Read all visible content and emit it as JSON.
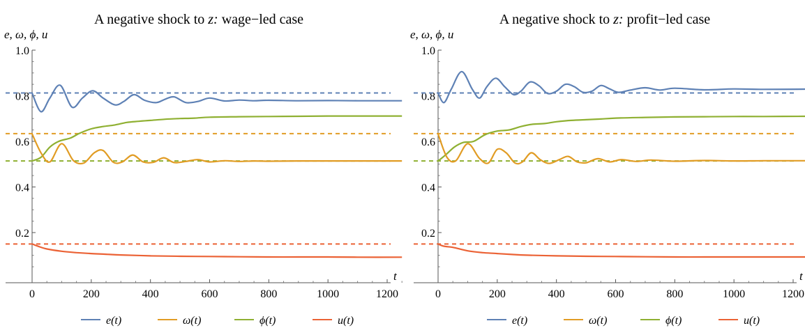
{
  "chart_data": [
    {
      "type": "line",
      "title_prefix": "A negative shock to ",
      "title_var": "z:",
      "title_suffix": " wage−led case",
      "ylabel": "e, ω, ϕ, u",
      "xlabel": "t",
      "xlim": [
        -10,
        1250
      ],
      "ylim": [
        -0.02,
        1.0
      ],
      "x_ticks": [
        0,
        200,
        400,
        600,
        800,
        1000,
        1200
      ],
      "x_tick_labels": [
        "0",
        "200",
        "400",
        "600",
        "800",
        "1000",
        "1200"
      ],
      "y_ticks": [
        0.2,
        0.4,
        0.6,
        0.8,
        1.0
      ],
      "y_tick_labels": [
        "0.2",
        "0.4",
        "0.6",
        "0.8",
        "1.0"
      ],
      "grid": false,
      "legend_position": "bottom",
      "series": [
        {
          "name": "e(t)",
          "color": "#5E81B5",
          "x": [
            0,
            30,
            60,
            95,
            135,
            170,
            205,
            240,
            280,
            310,
            345,
            380,
            420,
            450,
            480,
            520,
            560,
            600,
            650,
            700,
            750,
            800,
            900,
            1000,
            1100,
            1250
          ],
          "y": [
            0.812,
            0.73,
            0.79,
            0.846,
            0.75,
            0.79,
            0.822,
            0.79,
            0.76,
            0.775,
            0.805,
            0.78,
            0.77,
            0.785,
            0.795,
            0.77,
            0.775,
            0.79,
            0.777,
            0.781,
            0.778,
            0.78,
            0.778,
            0.779,
            0.778,
            0.778
          ]
        },
        {
          "name": "ω(t)",
          "color": "#E19C24",
          "x": [
            0,
            30,
            60,
            100,
            140,
            175,
            210,
            240,
            275,
            305,
            340,
            375,
            410,
            445,
            480,
            520,
            560,
            600,
            650,
            700,
            750,
            800,
            900,
            1000,
            1100,
            1250
          ],
          "y": [
            0.633,
            0.55,
            0.51,
            0.59,
            0.515,
            0.505,
            0.55,
            0.56,
            0.508,
            0.51,
            0.54,
            0.51,
            0.508,
            0.528,
            0.507,
            0.512,
            0.52,
            0.51,
            0.515,
            0.512,
            0.514,
            0.513,
            0.514,
            0.514,
            0.514,
            0.514
          ]
        },
        {
          "name": "ϕ(t)",
          "color": "#8FB032",
          "x": [
            0,
            30,
            60,
            90,
            130,
            160,
            200,
            240,
            280,
            320,
            360,
            400,
            450,
            500,
            550,
            600,
            700,
            800,
            900,
            1000,
            1100,
            1250
          ],
          "y": [
            0.514,
            0.53,
            0.575,
            0.6,
            0.615,
            0.635,
            0.655,
            0.665,
            0.672,
            0.683,
            0.688,
            0.692,
            0.697,
            0.7,
            0.702,
            0.706,
            0.708,
            0.709,
            0.71,
            0.711,
            0.711,
            0.711
          ]
        },
        {
          "name": "u(t)",
          "color": "#EB6235",
          "x": [
            0,
            20,
            50,
            100,
            150,
            200,
            250,
            300,
            400,
            500,
            600,
            700,
            800,
            900,
            1000,
            1100,
            1250
          ],
          "y": [
            0.15,
            0.14,
            0.128,
            0.118,
            0.112,
            0.108,
            0.105,
            0.102,
            0.098,
            0.096,
            0.095,
            0.094,
            0.093,
            0.093,
            0.093,
            0.092,
            0.092
          ]
        }
      ],
      "reference_lines": [
        {
          "y": 0.812,
          "color": "#5E81B5"
        },
        {
          "y": 0.634,
          "color": "#E19C24"
        },
        {
          "y": 0.514,
          "color": "#8FB032"
        },
        {
          "y": 0.15,
          "color": "#EB6235"
        }
      ]
    },
    {
      "type": "line",
      "title_prefix": "A negative shock to ",
      "title_var": "z:",
      "title_suffix": " profit−led case",
      "ylabel": "e, ω, ϕ, u",
      "xlabel": "t",
      "xlim": [
        -10,
        1250
      ],
      "ylim": [
        -0.02,
        1.0
      ],
      "x_ticks": [
        0,
        200,
        400,
        600,
        800,
        1000,
        1200
      ],
      "x_tick_labels": [
        "0",
        "200",
        "400",
        "600",
        "800",
        "1000",
        "1200"
      ],
      "y_ticks": [
        0.2,
        0.4,
        0.6,
        0.8,
        1.0
      ],
      "y_tick_labels": [
        "0.2",
        "0.4",
        "0.6",
        "0.8",
        "1.0"
      ],
      "grid": false,
      "legend_position": "bottom",
      "series": [
        {
          "name": "e(t)",
          "color": "#5E81B5",
          "x": [
            0,
            20,
            45,
            80,
            115,
            140,
            165,
            195,
            225,
            255,
            280,
            310,
            340,
            370,
            400,
            430,
            460,
            490,
            520,
            550,
            580,
            610,
            650,
            700,
            750,
            800,
            900,
            1000,
            1100,
            1250
          ],
          "y": [
            0.812,
            0.77,
            0.83,
            0.906,
            0.83,
            0.79,
            0.84,
            0.877,
            0.84,
            0.805,
            0.82,
            0.86,
            0.845,
            0.81,
            0.82,
            0.85,
            0.84,
            0.815,
            0.82,
            0.845,
            0.83,
            0.815,
            0.825,
            0.835,
            0.825,
            0.833,
            0.826,
            0.83,
            0.828,
            0.829
          ]
        },
        {
          "name": "ω(t)",
          "color": "#E19C24",
          "x": [
            0,
            30,
            60,
            100,
            140,
            170,
            200,
            230,
            260,
            285,
            315,
            345,
            375,
            410,
            440,
            470,
            500,
            540,
            580,
            620,
            670,
            720,
            800,
            900,
            1000,
            1100,
            1250
          ],
          "y": [
            0.633,
            0.53,
            0.515,
            0.59,
            0.525,
            0.505,
            0.565,
            0.55,
            0.505,
            0.51,
            0.55,
            0.52,
            0.503,
            0.52,
            0.534,
            0.51,
            0.506,
            0.524,
            0.51,
            0.52,
            0.512,
            0.518,
            0.513,
            0.516,
            0.514,
            0.515,
            0.515
          ]
        },
        {
          "name": "ϕ(t)",
          "color": "#8FB032",
          "x": [
            0,
            25,
            55,
            85,
            120,
            160,
            200,
            240,
            280,
            320,
            360,
            400,
            450,
            500,
            550,
            600,
            700,
            800,
            900,
            1000,
            1100,
            1250
          ],
          "y": [
            0.514,
            0.54,
            0.575,
            0.595,
            0.6,
            0.63,
            0.645,
            0.65,
            0.665,
            0.675,
            0.678,
            0.686,
            0.692,
            0.695,
            0.698,
            0.702,
            0.705,
            0.707,
            0.708,
            0.709,
            0.709,
            0.71
          ]
        },
        {
          "name": "u(t)",
          "color": "#EB6235",
          "x": [
            0,
            20,
            50,
            100,
            150,
            200,
            250,
            300,
            400,
            500,
            600,
            700,
            800,
            900,
            1000,
            1100,
            1250
          ],
          "y": [
            0.15,
            0.14,
            0.135,
            0.12,
            0.112,
            0.108,
            0.104,
            0.101,
            0.098,
            0.096,
            0.095,
            0.094,
            0.093,
            0.093,
            0.093,
            0.093,
            0.093
          ]
        }
      ],
      "reference_lines": [
        {
          "y": 0.812,
          "color": "#5E81B5"
        },
        {
          "y": 0.634,
          "color": "#E19C24"
        },
        {
          "y": 0.514,
          "color": "#8FB032"
        },
        {
          "y": 0.15,
          "color": "#EB6235"
        }
      ]
    }
  ]
}
